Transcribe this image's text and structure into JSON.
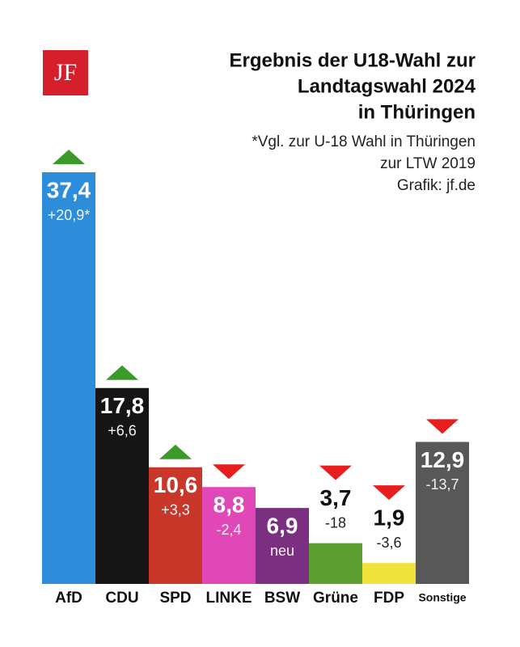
{
  "logo": "JF",
  "chart_data": {
    "type": "bar",
    "title": [
      "Ergebnis der U18-Wahl zur",
      "Landtagswahl 2024",
      "in Thüringen"
    ],
    "subtitle": [
      "*Vgl. zur U-18 Wahl in Thüringen",
      "zur LTW 2019",
      "Grafik: jf.de"
    ],
    "categories": [
      "AfD",
      "CDU",
      "SPD",
      "LINKE",
      "BSW",
      "Grüne",
      "FDP",
      "Sonstige"
    ],
    "values": [
      37.4,
      17.8,
      10.6,
      8.8,
      6.9,
      3.7,
      1.9,
      12.9
    ],
    "value_labels": [
      "37,4",
      "17,8",
      "10,6",
      "8,8",
      "6,9",
      "3,7",
      "1,9",
      "12,9"
    ],
    "changes": [
      20.9,
      6.6,
      3.3,
      -2.4,
      null,
      -18,
      -3.6,
      -13.7
    ],
    "change_labels": [
      "+20,9*",
      "+6,6",
      "+3,3",
      "-2,4",
      "neu",
      "-18",
      "-3,6",
      "-13,7"
    ],
    "colors": [
      "#2e8ddb",
      "#151515",
      "#c9372b",
      "#e048b8",
      "#7a2f80",
      "#5d9f32",
      "#f0e23c",
      "#585858"
    ],
    "up_color": "#3a9a2a",
    "down_color": "#e81e1e"
  }
}
